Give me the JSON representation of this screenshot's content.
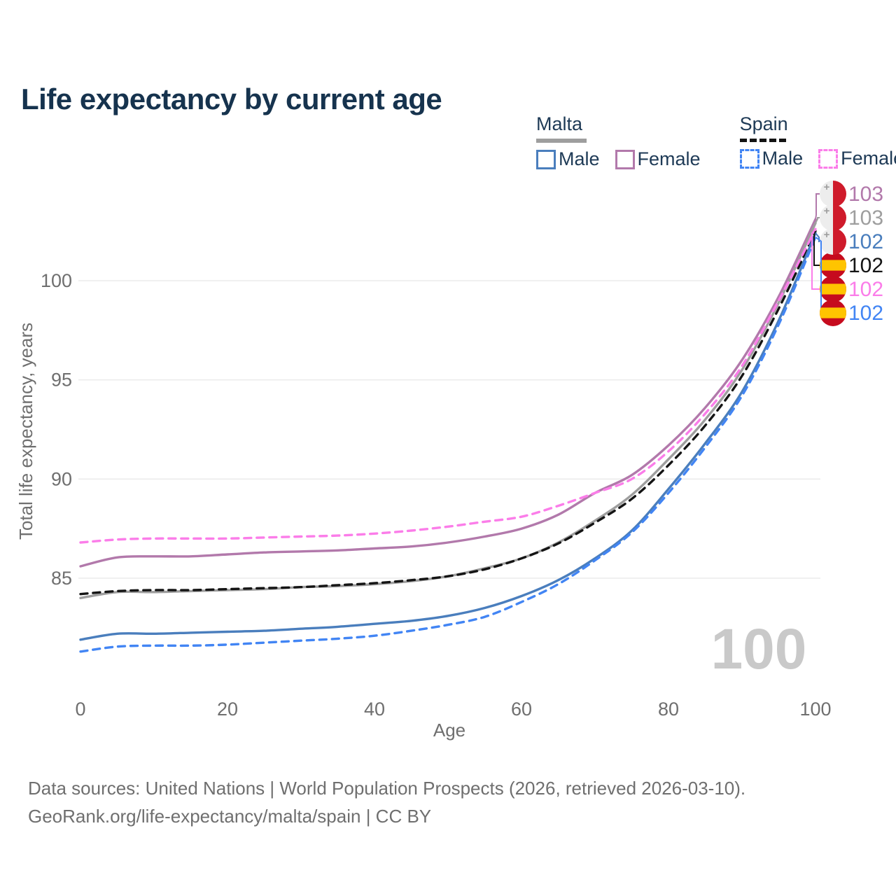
{
  "page": {
    "title": "Life expectancy by current age",
    "background": "#ffffff",
    "accent_navy": "#16334e"
  },
  "legend": {
    "groups": [
      {
        "label": "Malta",
        "line_style": "solid",
        "line_color": "#9e9e9e",
        "items": [
          {
            "label": "Male",
            "color": "#4a7ebd",
            "style": "solid"
          },
          {
            "label": "Female",
            "color": "#b279ab",
            "style": "solid"
          }
        ]
      },
      {
        "label": "Spain",
        "line_style": "dashed",
        "line_color": "#141414",
        "items": [
          {
            "label": "Male",
            "color": "#4285f4",
            "style": "dashed"
          },
          {
            "label": "Female",
            "color": "#fb7de9",
            "style": "dashed"
          }
        ]
      }
    ]
  },
  "chart_data": {
    "type": "line",
    "title": "Life expectancy by current age",
    "xlabel": "Age",
    "ylabel": "Total life expectancy, years",
    "x_ticks": [
      0,
      20,
      40,
      60,
      80,
      100
    ],
    "y_ticks": [
      85,
      90,
      95,
      100
    ],
    "xlim": [
      0,
      100
    ],
    "ylim": [
      80.5,
      103.5
    ],
    "grid": "horizontal-only",
    "legend_position": "top-right",
    "hovered_age": "100",
    "x": [
      0,
      5,
      10,
      15,
      20,
      25,
      30,
      35,
      40,
      45,
      50,
      55,
      60,
      65,
      70,
      75,
      80,
      85,
      90,
      95,
      100
    ],
    "series": [
      {
        "name": "Malta Female",
        "country": "Malta",
        "sex": "female",
        "color": "#b279ab",
        "dashed": false,
        "values": [
          85.6,
          86.05,
          86.1,
          86.1,
          86.2,
          86.3,
          86.35,
          86.4,
          86.5,
          86.6,
          86.8,
          87.1,
          87.5,
          88.2,
          89.3,
          90.2,
          91.7,
          93.6,
          96.0,
          99.2,
          103.1
        ],
        "end_label": "103",
        "flag": "malta",
        "row": 0
      },
      {
        "name": "Malta",
        "country": "Malta",
        "sex": "both",
        "color": "#9e9e9e",
        "dashed": false,
        "values": [
          84.0,
          84.3,
          84.3,
          84.35,
          84.4,
          84.45,
          84.55,
          84.6,
          84.7,
          84.85,
          85.1,
          85.5,
          86.0,
          86.8,
          87.9,
          89.2,
          91.0,
          93.0,
          95.5,
          98.9,
          102.9
        ],
        "end_label": "103",
        "flag": "malta",
        "row": 1
      },
      {
        "name": "Spain",
        "country": "Spain",
        "sex": "both",
        "color": "#141414",
        "dashed": true,
        "values": [
          84.2,
          84.35,
          84.4,
          84.4,
          84.45,
          84.5,
          84.55,
          84.65,
          84.75,
          84.9,
          85.1,
          85.45,
          86.0,
          86.75,
          87.8,
          89.0,
          90.7,
          92.7,
          95.2,
          98.6,
          102.5
        ],
        "end_label": "102",
        "flag": "spain",
        "row": 3
      },
      {
        "name": "Spain Female",
        "country": "Spain",
        "sex": "female",
        "color": "#fb7de9",
        "dashed": true,
        "values": [
          86.8,
          86.95,
          87.0,
          87.0,
          87.0,
          87.05,
          87.1,
          87.15,
          87.25,
          87.4,
          87.6,
          87.85,
          88.1,
          88.65,
          89.3,
          90.0,
          91.4,
          93.3,
          95.7,
          99.0,
          102.6
        ],
        "end_label": "102",
        "flag": "spain",
        "row": 4
      },
      {
        "name": "Malta Male",
        "country": "Malta",
        "sex": "male",
        "color": "#4a7ebd",
        "dashed": false,
        "values": [
          81.9,
          82.2,
          82.2,
          82.25,
          82.3,
          82.35,
          82.45,
          82.55,
          82.7,
          82.85,
          83.1,
          83.5,
          84.1,
          84.9,
          86.0,
          87.4,
          89.5,
          91.8,
          94.4,
          98.0,
          102.4
        ],
        "end_label": "102",
        "flag": "malta",
        "row": 2
      },
      {
        "name": "Spain Male",
        "country": "Spain",
        "sex": "male",
        "color": "#4285f4",
        "dashed": true,
        "values": [
          81.3,
          81.55,
          81.6,
          81.6,
          81.65,
          81.75,
          81.85,
          81.95,
          82.1,
          82.35,
          82.65,
          83.05,
          83.8,
          84.7,
          85.9,
          87.3,
          89.3,
          91.6,
          94.2,
          97.8,
          102.2
        ],
        "end_label": "102",
        "flag": "spain",
        "row": 5
      }
    ],
    "flags": {
      "malta": {
        "left": "#ededed",
        "right": "#cf1b2b",
        "cross": "#9e9e9e"
      },
      "spain": {
        "red": "#c60b1e",
        "yellow": "#ffc400"
      }
    },
    "watermark": "100"
  },
  "footer": {
    "line1": "Data sources: United Nations | World Population Prospects (2026, retrieved 2026-03-10).",
    "line2": "GeoRank.org/life-expectancy/malta/spain | CC BY"
  }
}
